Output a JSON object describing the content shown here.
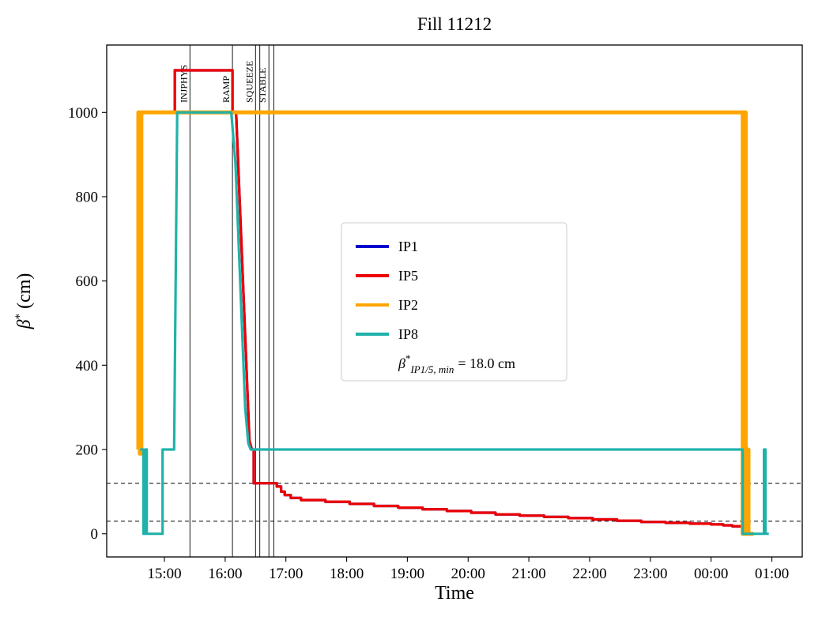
{
  "chart_data": {
    "type": "line",
    "title": "Fill 11212",
    "xlabel": "Time",
    "ylabel": "β* (cm)",
    "ylabel_parts": {
      "symbol": "β",
      "sup": "*",
      "rest": "(cm)"
    },
    "xlim_hours_after_1400": [
      0.05,
      11.5
    ],
    "ylim": [
      -55,
      1160
    ],
    "grid": false,
    "x_ticks": [
      {
        "hour": 1,
        "label": "15:00"
      },
      {
        "hour": 2,
        "label": "16:00"
      },
      {
        "hour": 3,
        "label": "17:00"
      },
      {
        "hour": 4,
        "label": "18:00"
      },
      {
        "hour": 5,
        "label": "19:00"
      },
      {
        "hour": 6,
        "label": "20:00"
      },
      {
        "hour": 7,
        "label": "21:00"
      },
      {
        "hour": 8,
        "label": "22:00"
      },
      {
        "hour": 9,
        "label": "23:00"
      },
      {
        "hour": 10,
        "label": "00:00"
      },
      {
        "hour": 11,
        "label": "01:00"
      }
    ],
    "y_ticks": [
      0,
      200,
      400,
      600,
      800,
      1000
    ],
    "dashed_hlines": [
      120,
      30
    ],
    "beam_modes": [
      {
        "time": 1.42,
        "label": "INJPHYS"
      },
      {
        "time": 2.12,
        "label": "RAMP"
      },
      {
        "time": 2.5,
        "label": "SQUEEZE"
      },
      {
        "time": 2.57,
        "label": ""
      },
      {
        "time": 2.72,
        "label": "STABLE"
      },
      {
        "time": 2.8,
        "label": ""
      }
    ],
    "series": [
      {
        "name": "IP1",
        "color": "#0000CD",
        "linewidth": 3.2,
        "points_same_as": "IP5"
      },
      {
        "name": "IP5",
        "color": "#ED0000",
        "linewidth": 3.2,
        "points": [
          [
            1.15,
            1000
          ],
          [
            1.17,
            1000
          ],
          [
            1.17,
            1100
          ],
          [
            2.12,
            1100
          ],
          [
            2.12,
            1000
          ],
          [
            2.18,
            1000
          ],
          [
            2.4,
            220
          ],
          [
            2.44,
            200
          ],
          [
            2.47,
            200
          ],
          [
            2.47,
            120
          ],
          [
            2.85,
            120
          ],
          [
            2.85,
            112
          ],
          [
            2.92,
            112
          ],
          [
            2.92,
            100
          ],
          [
            2.98,
            100
          ],
          [
            2.98,
            92
          ],
          [
            3.08,
            92
          ],
          [
            3.08,
            85
          ],
          [
            3.25,
            85
          ],
          [
            3.25,
            80
          ],
          [
            3.65,
            80
          ],
          [
            3.65,
            76
          ],
          [
            4.05,
            76
          ],
          [
            4.05,
            71
          ],
          [
            4.45,
            71
          ],
          [
            4.45,
            66
          ],
          [
            4.85,
            66
          ],
          [
            4.85,
            62
          ],
          [
            5.25,
            62
          ],
          [
            5.25,
            58
          ],
          [
            5.65,
            58
          ],
          [
            5.65,
            54
          ],
          [
            6.05,
            54
          ],
          [
            6.05,
            50
          ],
          [
            6.45,
            50
          ],
          [
            6.45,
            46
          ],
          [
            6.85,
            46
          ],
          [
            6.85,
            43
          ],
          [
            7.25,
            43
          ],
          [
            7.25,
            40
          ],
          [
            7.65,
            40
          ],
          [
            7.65,
            37
          ],
          [
            8.05,
            37
          ],
          [
            8.05,
            34
          ],
          [
            8.45,
            34
          ],
          [
            8.45,
            31
          ],
          [
            8.85,
            31
          ],
          [
            8.85,
            28
          ],
          [
            9.25,
            28
          ],
          [
            9.25,
            26
          ],
          [
            9.65,
            26
          ],
          [
            9.65,
            24
          ],
          [
            10.0,
            24
          ],
          [
            10.0,
            22
          ],
          [
            10.2,
            22
          ],
          [
            10.2,
            20
          ],
          [
            10.35,
            20
          ],
          [
            10.35,
            18
          ],
          [
            10.52,
            18
          ]
        ]
      },
      {
        "name": "IP2",
        "color": "#FFA500",
        "linewidth": 5,
        "points": [
          [
            0.57,
            200
          ],
          [
            0.57,
            1000
          ],
          [
            0.595,
            1000
          ],
          [
            0.595,
            190
          ],
          [
            0.62,
            190
          ],
          [
            0.62,
            1000
          ],
          [
            10.52,
            1000
          ],
          [
            10.52,
            0
          ],
          [
            10.545,
            0
          ],
          [
            10.545,
            1000
          ],
          [
            10.57,
            1000
          ],
          [
            10.57,
            0
          ],
          [
            10.6,
            0
          ],
          [
            10.6,
            200
          ],
          [
            10.615,
            200
          ],
          [
            10.615,
            0
          ],
          [
            10.7,
            0
          ]
        ]
      },
      {
        "name": "IP8",
        "color": "#20B2AA",
        "linewidth": 3.2,
        "points": [
          [
            0.6,
            200
          ],
          [
            0.655,
            200
          ],
          [
            0.655,
            0
          ],
          [
            0.685,
            0
          ],
          [
            0.685,
            200
          ],
          [
            0.71,
            200
          ],
          [
            0.71,
            0
          ],
          [
            0.97,
            0
          ],
          [
            0.97,
            200
          ],
          [
            1.16,
            200
          ],
          [
            1.21,
            1000
          ],
          [
            2.1,
            1000
          ],
          [
            2.17,
            880
          ],
          [
            2.33,
            300
          ],
          [
            2.38,
            215
          ],
          [
            2.42,
            200
          ],
          [
            10.52,
            200
          ],
          [
            10.52,
            0
          ],
          [
            10.87,
            0
          ],
          [
            10.87,
            200
          ],
          [
            10.895,
            200
          ],
          [
            10.895,
            0
          ],
          [
            10.95,
            0
          ]
        ]
      }
    ],
    "legend": {
      "position": "center-left",
      "entries": [
        {
          "label": "IP1",
          "color": "#0000CD"
        },
        {
          "label": "IP5",
          "color": "#ED0000"
        },
        {
          "label": "IP2",
          "color": "#FFA500"
        },
        {
          "label": "IP8",
          "color": "#20B2AA"
        }
      ],
      "annotation": "β*_IP1/5,min = 18.0 cm",
      "annotation_parts": {
        "symbol": "β",
        "sup": "*",
        "sub": "IP1/5, min",
        "rest": "= 18.0 cm"
      }
    }
  }
}
